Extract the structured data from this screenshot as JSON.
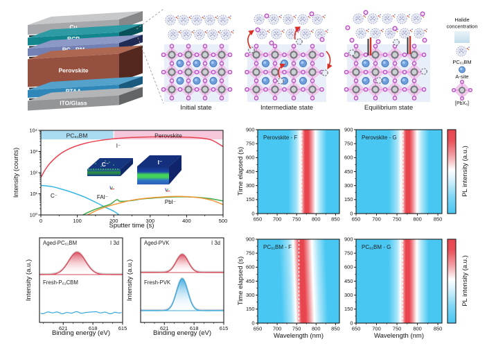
{
  "panels": {
    "device_stack": {
      "layers": [
        {
          "label": "Cu",
          "front": "#A6A8AB",
          "top": "#C6C8CA",
          "side": "#858789"
        },
        {
          "label": "BCP",
          "front": "#12858F",
          "top": "#2E9AA4",
          "side": "#07525A"
        },
        {
          "label": "PC₆₁BM",
          "front": "#7280B4",
          "top": "#8C98C6",
          "side": "#1F2A55"
        },
        {
          "label": "Perovskite",
          "front": "#95503F",
          "top": "#AE6852",
          "side": "#55281F"
        },
        {
          "label": "PTAA",
          "front": "#2F86B8",
          "top": "#54A2CB",
          "side": "#1B5A7F"
        },
        {
          "label": "ITO/Glass",
          "front": "#939597",
          "top": "#B3B5B7",
          "side": "#626466"
        }
      ]
    },
    "ion_migration": {
      "states": [
        {
          "label": "Initial state"
        },
        {
          "label": "Intermediate state"
        },
        {
          "label": "Equilibrium state"
        }
      ],
      "legend": {
        "halide_label": "Halide concentration",
        "pcbm_label": "PC₆₁BM",
        "asite_label": "A-site",
        "octahedron_label": "[PbX₆]"
      }
    }
  },
  "chart_data": [
    {
      "id": "sims_depth_profile",
      "type": "line",
      "xlabel": "Sputter time (s)",
      "ylabel": "Intensity (counts)",
      "xlim": [
        0,
        500
      ],
      "xticks": [
        0,
        100,
        200,
        300,
        400,
        500
      ],
      "yscale": "log",
      "ylim": [
        1,
        10000
      ],
      "ytick_labels": [
        "10⁰",
        "10¹",
        "10²",
        "10³",
        "10⁴"
      ],
      "region_bands": [
        {
          "label": "PC₆₁BM",
          "from": 0,
          "to": 200,
          "color": "#A9DCF1"
        },
        {
          "label": "Perovskite",
          "from": 200,
          "to": 500,
          "color": "#F6C7DB"
        }
      ],
      "series": [
        {
          "name": "I⁻",
          "color": "#E8404E",
          "points": [
            [
              0,
              60
            ],
            [
              20,
              220
            ],
            [
              50,
              700
            ],
            [
              80,
              1400
            ],
            [
              120,
              2400
            ],
            [
              160,
              3300
            ],
            [
              200,
              4000
            ],
            [
              250,
              4600
            ],
            [
              300,
              4900
            ],
            [
              350,
              4950
            ],
            [
              400,
              4750
            ],
            [
              440,
              4300
            ],
            [
              470,
              3400
            ],
            [
              500,
              1700
            ]
          ]
        },
        {
          "name": "C⁻",
          "color": "#35B5E9",
          "points": [
            [
              0,
              25
            ],
            [
              30,
              22
            ],
            [
              60,
              16
            ],
            [
              90,
              11
            ],
            [
              120,
              7
            ],
            [
              150,
              4
            ],
            [
              175,
              2.4
            ],
            [
              200,
              1.5
            ],
            [
              215,
              1
            ]
          ]
        },
        {
          "name": "FAI⁻",
          "color": "#3FAC4B",
          "points": [
            [
              115,
              1
            ],
            [
              140,
              1.6
            ],
            [
              165,
              2.3
            ],
            [
              190,
              3.2
            ],
            [
              203,
              4.6
            ],
            [
              210,
              5.3
            ],
            [
              218,
              4.4
            ],
            [
              245,
              4.7
            ],
            [
              275,
              5.6
            ],
            [
              305,
              6.2
            ],
            [
              345,
              6.9
            ],
            [
              385,
              7.2
            ],
            [
              425,
              6.9
            ],
            [
              465,
              5.9
            ],
            [
              500,
              4.6
            ]
          ]
        },
        {
          "name": "PbI⁻",
          "color": "#F39433",
          "points": [
            [
              128,
              1
            ],
            [
              155,
              1.7
            ],
            [
              185,
              2.6
            ],
            [
              215,
              3.6
            ],
            [
              250,
              5
            ],
            [
              290,
              6.2
            ],
            [
              330,
              7
            ],
            [
              370,
              7.5
            ],
            [
              400,
              7.3
            ],
            [
              440,
              6.3
            ],
            [
              470,
              4.9
            ],
            [
              500,
              3.1
            ]
          ]
        }
      ],
      "insets": [
        {
          "label": "C⁻"
        },
        {
          "label": "I⁻"
        }
      ]
    },
    {
      "id": "xps_i3d",
      "type": "line",
      "xlabel": "Binding energy (eV)",
      "ylabel": "Intensity (a.u.)",
      "xlim": [
        623.4,
        615
      ],
      "xticks": [
        621,
        618,
        615
      ],
      "panels": [
        {
          "top_label": "Aged-PC₆₁BM",
          "corner_label": "I 3d",
          "bottom_label": "Fresh-P₆₁CBM",
          "aged_peak": {
            "center": 619.6,
            "sigma": 0.85,
            "height": 32,
            "color": "#D8485A"
          },
          "fresh_flat": true,
          "fresh_color": "#38A8DE"
        },
        {
          "top_label": "Aged-PVK",
          "corner_label": "I 3d",
          "bottom_label": "Fresh-PVK",
          "aged_peak": {
            "center": 619.2,
            "sigma": 0.6,
            "height": 26,
            "color": "#D8485A"
          },
          "fresh_peak": {
            "center": 619.2,
            "sigma": 0.56,
            "height": 46,
            "color": "#38A8DE"
          }
        }
      ]
    },
    {
      "id": "pl_maps",
      "type": "heatmap",
      "xlabel": "Wavelength (nm)",
      "ylabel": "Time elapsed (s)",
      "colorbar_label": "PL intensity (a.u.)",
      "xticks": [
        650,
        700,
        750,
        800,
        850
      ],
      "yticks": [
        0,
        150,
        300,
        450,
        600,
        750,
        900
      ],
      "xlim": [
        650,
        860
      ],
      "ylim": [
        0,
        900
      ],
      "heat_colors": {
        "low": "#47C7F2",
        "mid": "#FFFFFF",
        "high": "#E9454F"
      },
      "panels": [
        {
          "title": "Perovskite - F",
          "band_center_nm": 771,
          "dashed_line_nm": 763,
          "blue_shift": false
        },
        {
          "title": "Perovskite - G",
          "band_center_nm": 772,
          "dashed_line_nm": 765,
          "blue_shift": false
        },
        {
          "title": "PC₆₁BM - F",
          "band_center_nm": 763,
          "dashed_line_nm": 756,
          "blue_shift": true
        },
        {
          "title": "PC₆₁BM - G",
          "band_center_nm": 771,
          "dashed_line_nm": 764,
          "blue_shift": false
        }
      ]
    }
  ]
}
